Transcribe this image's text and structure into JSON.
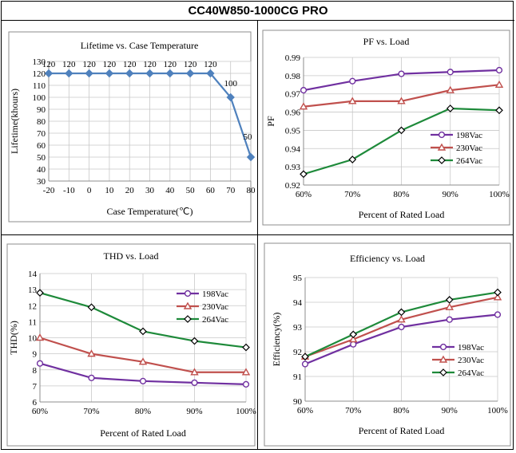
{
  "title": "CC40W850-1000CG PRO",
  "chart_data": [
    {
      "id": "lifetime",
      "type": "line",
      "title": "Lifetime vs. Case Temperature",
      "xlabel": "Case Temperature(℃)",
      "ylabel": "Lifetime(khours)",
      "x": [
        -20,
        -10,
        0,
        10,
        20,
        30,
        40,
        50,
        60,
        70,
        80
      ],
      "xticks": [
        "-20",
        "-10",
        "0",
        "10",
        "20",
        "30",
        "40",
        "50",
        "60",
        "70",
        "80"
      ],
      "xlim": [
        -20,
        80
      ],
      "ylim": [
        30,
        130
      ],
      "yticks": [
        30,
        40,
        50,
        60,
        70,
        80,
        90,
        100,
        110,
        120,
        130
      ],
      "grid": true,
      "series": [
        {
          "name": "Lifetime",
          "color": "#4f81bd",
          "marker": "diamond-filled",
          "values": [
            120,
            120,
            120,
            120,
            120,
            120,
            120,
            120,
            120,
            100,
            50
          ],
          "labels": [
            "120",
            "120",
            "120",
            "120",
            "120",
            "120",
            "120",
            "120",
            "120",
            "100",
            "50"
          ]
        }
      ]
    },
    {
      "id": "pf",
      "type": "line",
      "title": "PF vs. Load",
      "xlabel": "Percent of Rated Load",
      "ylabel": "PF",
      "categories": [
        "60%",
        "70%",
        "80%",
        "90%",
        "100%"
      ],
      "ylim": [
        0.92,
        0.99
      ],
      "yticks": [
        "0.92",
        "0.93",
        "0.94",
        "0.95",
        "0.96",
        "0.97",
        "0.98",
        "0.99"
      ],
      "grid": true,
      "legend": "bottom-right",
      "series": [
        {
          "name": "198Vac",
          "color": "#7030a0",
          "marker": "circle",
          "values": [
            0.972,
            0.977,
            0.981,
            0.982,
            0.983
          ]
        },
        {
          "name": "230Vac",
          "color": "#c0504d",
          "marker": "triangle",
          "values": [
            0.963,
            0.966,
            0.966,
            0.972,
            0.975
          ]
        },
        {
          "name": "264Vac",
          "color": "#1e8a3a",
          "marker": "diamond",
          "values": [
            0.926,
            0.934,
            0.95,
            0.962,
            0.961
          ]
        }
      ]
    },
    {
      "id": "thd",
      "type": "line",
      "title": "THD vs. Load",
      "xlabel": "Percent of Rated Load",
      "ylabel": "THD(%)",
      "categories": [
        "60%",
        "70%",
        "80%",
        "90%",
        "100%"
      ],
      "ylim": [
        6,
        14
      ],
      "yticks": [
        "6",
        "7",
        "8",
        "9",
        "10",
        "11",
        "12",
        "13",
        "14"
      ],
      "grid": true,
      "legend": "top-right",
      "series": [
        {
          "name": "198Vac",
          "color": "#7030a0",
          "marker": "circle",
          "values": [
            8.4,
            7.5,
            7.3,
            7.2,
            7.1
          ]
        },
        {
          "name": "230Vac",
          "color": "#c0504d",
          "marker": "triangle",
          "values": [
            10.0,
            9.0,
            8.5,
            7.85,
            7.85
          ]
        },
        {
          "name": "264Vac",
          "color": "#1e8a3a",
          "marker": "diamond",
          "values": [
            12.8,
            11.9,
            10.4,
            9.8,
            9.4
          ]
        }
      ]
    },
    {
      "id": "efficiency",
      "type": "line",
      "title": "Efficiency vs. Load",
      "xlabel": "Percent of Rated Load",
      "ylabel": "Efficiency(%)",
      "categories": [
        "60%",
        "70%",
        "80%",
        "90%",
        "100%"
      ],
      "ylim": [
        90,
        95
      ],
      "yticks": [
        "90",
        "91",
        "92",
        "93",
        "94",
        "95"
      ],
      "grid": true,
      "legend": "bottom-right",
      "series": [
        {
          "name": "198Vac",
          "color": "#7030a0",
          "marker": "circle",
          "values": [
            91.5,
            92.3,
            93.0,
            93.3,
            93.5
          ]
        },
        {
          "name": "230Vac",
          "color": "#c0504d",
          "marker": "triangle",
          "values": [
            91.8,
            92.5,
            93.3,
            93.8,
            94.2
          ]
        },
        {
          "name": "264Vac",
          "color": "#1e8a3a",
          "marker": "diamond",
          "values": [
            91.8,
            92.7,
            93.6,
            94.1,
            94.4
          ]
        }
      ]
    }
  ]
}
